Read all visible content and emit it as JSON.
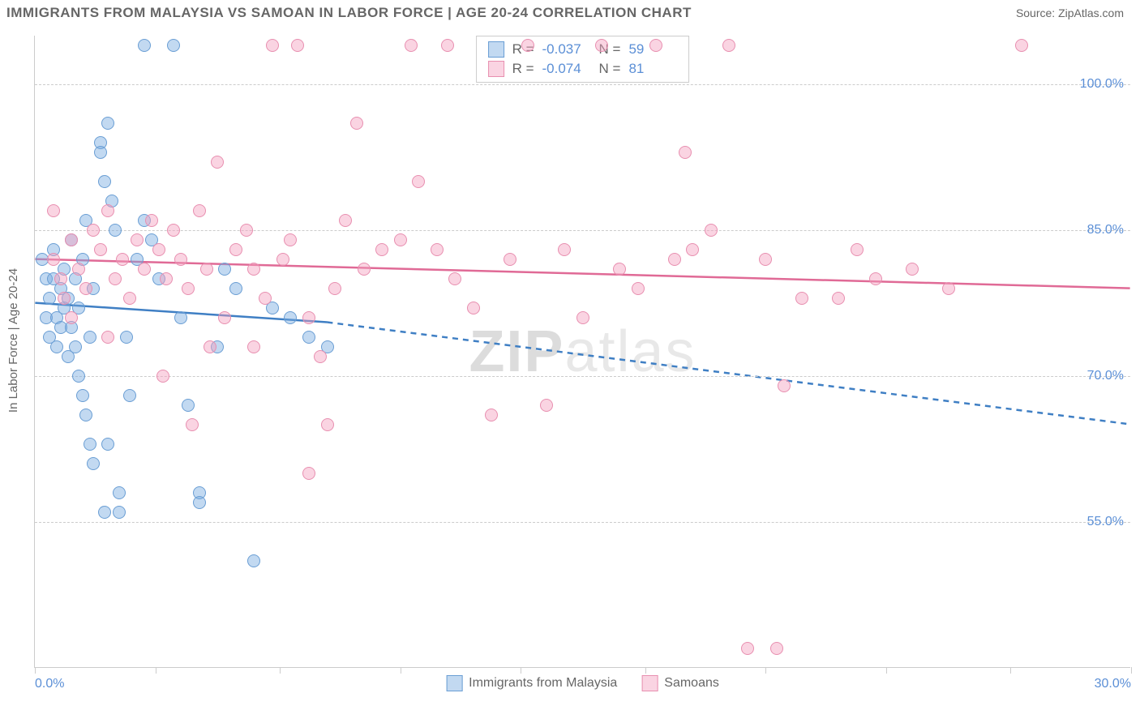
{
  "title": "IMMIGRANTS FROM MALAYSIA VS SAMOAN IN LABOR FORCE | AGE 20-24 CORRELATION CHART",
  "source": "Source: ZipAtlas.com",
  "watermark_a": "ZIP",
  "watermark_b": "atlas",
  "y_axis_label": "In Labor Force | Age 20-24",
  "chart": {
    "type": "scatter",
    "xlim": [
      0,
      30
    ],
    "ylim": [
      40,
      105
    ],
    "y_ticks": [
      55,
      70,
      85,
      100
    ],
    "y_tick_labels": [
      "55.0%",
      "70.0%",
      "85.0%",
      "100.0%"
    ],
    "x_ticks": [
      0,
      3.3,
      6.7,
      10,
      13.3,
      16.7,
      20,
      23.3,
      26.7,
      30
    ],
    "x_label_min": "0.0%",
    "x_label_max": "30.0%",
    "grid_color": "#cccccc",
    "background_color": "#ffffff",
    "point_radius": 8,
    "series": [
      {
        "name": "Immigrants from Malaysia",
        "fill": "rgba(120,170,225,0.45)",
        "stroke": "#6a9ed4",
        "line_color": "#3f7fc4",
        "R": "-0.037",
        "N": "59",
        "trend": {
          "x1": 0,
          "y1": 77.5,
          "solid_until_x": 8,
          "y_at_solid_end": 75.5,
          "x2": 30,
          "y2": 65
        },
        "points": [
          [
            0.2,
            82
          ],
          [
            0.3,
            80
          ],
          [
            0.3,
            76
          ],
          [
            0.4,
            78
          ],
          [
            0.4,
            74
          ],
          [
            0.5,
            83
          ],
          [
            0.5,
            80
          ],
          [
            0.6,
            76
          ],
          [
            0.6,
            73
          ],
          [
            0.7,
            79
          ],
          [
            0.7,
            75
          ],
          [
            0.8,
            81
          ],
          [
            0.8,
            77
          ],
          [
            0.9,
            72
          ],
          [
            0.9,
            78
          ],
          [
            1.0,
            84
          ],
          [
            1.0,
            75
          ],
          [
            1.1,
            80
          ],
          [
            1.1,
            73
          ],
          [
            1.2,
            77
          ],
          [
            1.2,
            70
          ],
          [
            1.3,
            82
          ],
          [
            1.3,
            68
          ],
          [
            1.4,
            86
          ],
          [
            1.4,
            66
          ],
          [
            1.5,
            74
          ],
          [
            1.5,
            63
          ],
          [
            1.6,
            61
          ],
          [
            1.6,
            79
          ],
          [
            1.8,
            94
          ],
          [
            1.8,
            93
          ],
          [
            1.9,
            90
          ],
          [
            1.9,
            56
          ],
          [
            2.0,
            96
          ],
          [
            2.0,
            63
          ],
          [
            2.1,
            88
          ],
          [
            2.2,
            85
          ],
          [
            2.3,
            58
          ],
          [
            2.3,
            56
          ],
          [
            2.5,
            74
          ],
          [
            2.6,
            68
          ],
          [
            2.8,
            82
          ],
          [
            3.0,
            86
          ],
          [
            3.2,
            84
          ],
          [
            3.4,
            80
          ],
          [
            3.8,
            104
          ],
          [
            4.0,
            76
          ],
          [
            4.2,
            67
          ],
          [
            4.5,
            58
          ],
          [
            4.5,
            57
          ],
          [
            5.0,
            73
          ],
          [
            5.2,
            81
          ],
          [
            5.5,
            79
          ],
          [
            6.0,
            51
          ],
          [
            6.5,
            77
          ],
          [
            7.0,
            76
          ],
          [
            7.5,
            74
          ],
          [
            8.0,
            73
          ],
          [
            3.0,
            104
          ]
        ]
      },
      {
        "name": "Samoans",
        "fill": "rgba(245,160,190,0.45)",
        "stroke": "#e88fb0",
        "line_color": "#e06a96",
        "R": "-0.074",
        "N": "81",
        "trend": {
          "x1": 0,
          "y1": 82,
          "solid_until_x": 30,
          "y_at_solid_end": 79,
          "x2": 30,
          "y2": 79
        },
        "points": [
          [
            0.5,
            82
          ],
          [
            0.7,
            80
          ],
          [
            0.8,
            78
          ],
          [
            1.0,
            84
          ],
          [
            1.2,
            81
          ],
          [
            1.4,
            79
          ],
          [
            1.6,
            85
          ],
          [
            1.8,
            83
          ],
          [
            2.0,
            87
          ],
          [
            2.2,
            80
          ],
          [
            2.4,
            82
          ],
          [
            2.6,
            78
          ],
          [
            2.8,
            84
          ],
          [
            3.0,
            81
          ],
          [
            3.2,
            86
          ],
          [
            3.4,
            83
          ],
          [
            3.6,
            80
          ],
          [
            3.8,
            85
          ],
          [
            4.0,
            82
          ],
          [
            4.2,
            79
          ],
          [
            4.3,
            65
          ],
          [
            4.5,
            87
          ],
          [
            4.7,
            81
          ],
          [
            5.0,
            92
          ],
          [
            5.2,
            76
          ],
          [
            5.5,
            83
          ],
          [
            5.8,
            85
          ],
          [
            6.0,
            81
          ],
          [
            6.3,
            78
          ],
          [
            6.5,
            104
          ],
          [
            6.8,
            82
          ],
          [
            7.0,
            84
          ],
          [
            7.2,
            104
          ],
          [
            7.5,
            60
          ],
          [
            7.8,
            72
          ],
          [
            8.0,
            65
          ],
          [
            8.2,
            79
          ],
          [
            8.5,
            86
          ],
          [
            8.8,
            96
          ],
          [
            9.0,
            81
          ],
          [
            9.5,
            83
          ],
          [
            10.0,
            84
          ],
          [
            10.3,
            104
          ],
          [
            10.5,
            90
          ],
          [
            11.0,
            83
          ],
          [
            11.3,
            104
          ],
          [
            11.5,
            80
          ],
          [
            12.0,
            77
          ],
          [
            12.5,
            66
          ],
          [
            13.0,
            82
          ],
          [
            13.5,
            104
          ],
          [
            14.0,
            67
          ],
          [
            14.5,
            83
          ],
          [
            15.0,
            76
          ],
          [
            15.5,
            104
          ],
          [
            16.0,
            81
          ],
          [
            16.5,
            79
          ],
          [
            17.0,
            104
          ],
          [
            17.5,
            82
          ],
          [
            17.8,
            93
          ],
          [
            18.0,
            83
          ],
          [
            18.5,
            85
          ],
          [
            19.0,
            104
          ],
          [
            19.5,
            42
          ],
          [
            20.0,
            82
          ],
          [
            20.3,
            42
          ],
          [
            20.5,
            69
          ],
          [
            21.0,
            78
          ],
          [
            22.0,
            78
          ],
          [
            22.5,
            83
          ],
          [
            23.0,
            80
          ],
          [
            24.0,
            81
          ],
          [
            25.0,
            79
          ],
          [
            27.0,
            104
          ],
          [
            3.5,
            70
          ],
          [
            4.8,
            73
          ],
          [
            6.0,
            73
          ],
          [
            7.5,
            76
          ],
          [
            1.0,
            76
          ],
          [
            2.0,
            74
          ],
          [
            0.5,
            87
          ]
        ]
      }
    ]
  },
  "stats_legend": {
    "r_label": "R =",
    "n_label": "N ="
  },
  "bottom_legend": {
    "series1": "Immigrants from Malaysia",
    "series2": "Samoans"
  }
}
